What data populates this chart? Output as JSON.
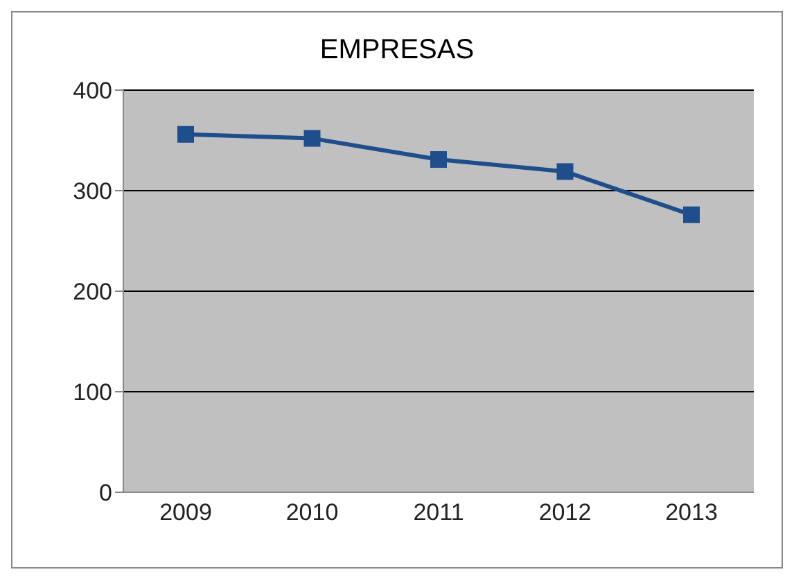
{
  "chart_data": {
    "type": "line",
    "title": "EMPRESAS",
    "categories": [
      "2009",
      "2010",
      "2011",
      "2012",
      "2013"
    ],
    "series": [
      {
        "color": "#1f4e8c",
        "values": [
          356,
          352,
          331,
          319,
          276
        ]
      }
    ],
    "ylim": [
      0,
      400
    ],
    "yticks": [
      0,
      100,
      200,
      300,
      400
    ],
    "grid": "y",
    "marker": "square"
  }
}
